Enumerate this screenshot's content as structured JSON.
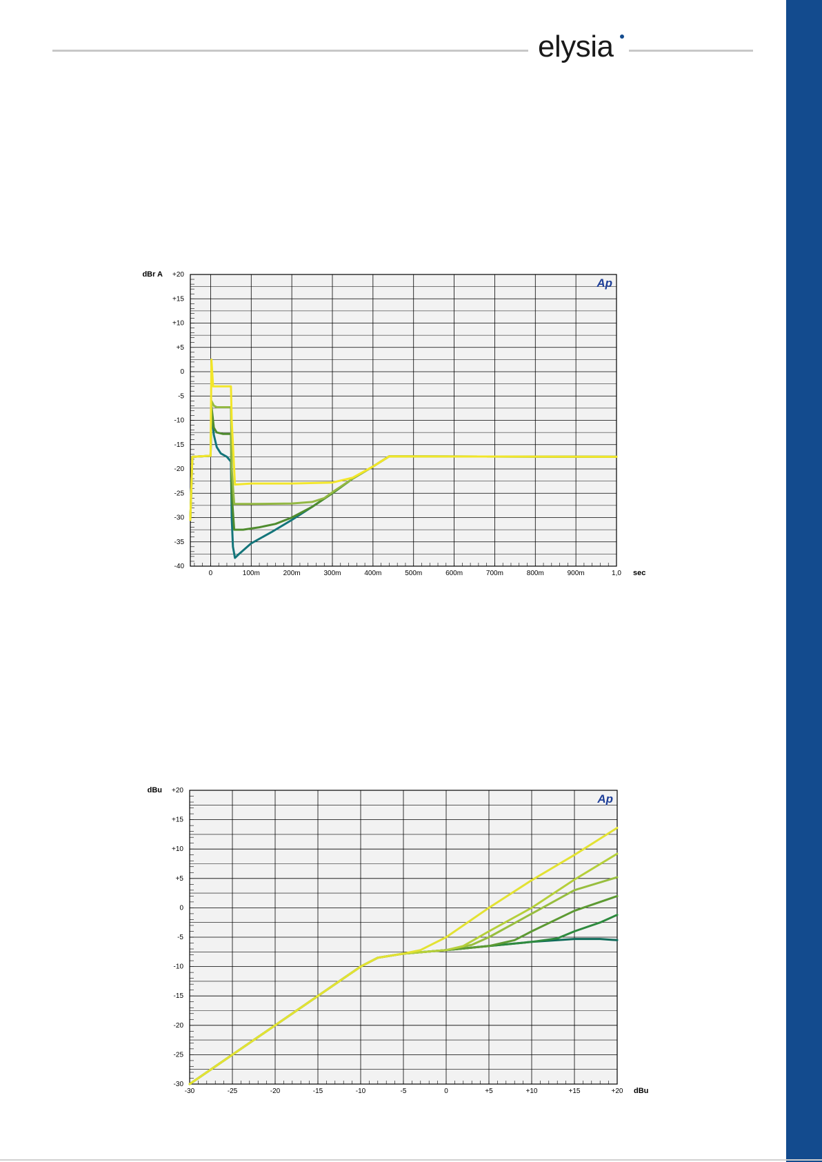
{
  "brand": {
    "name": "elysia"
  },
  "colors": {
    "sidebar": "#134b8e",
    "plot_bg": "#f2f2f2",
    "grid": "#000000"
  },
  "chart_data": [
    {
      "type": "line",
      "title": "",
      "ylabel": "dBr A",
      "xlabel": "sec",
      "xlim": [
        -0.05,
        1.0
      ],
      "ylim": [
        -40,
        20
      ],
      "x_ticks": [
        0,
        0.1,
        0.2,
        0.3,
        0.4,
        0.5,
        0.6,
        0.7,
        0.8,
        0.9,
        1.0
      ],
      "x_tick_labels": [
        "0",
        "100m",
        "200m",
        "300m",
        "400m",
        "500m",
        "600m",
        "700m",
        "800m",
        "900m",
        "1,0"
      ],
      "y_ticks": [
        20,
        15,
        10,
        5,
        0,
        -5,
        -10,
        -15,
        -20,
        -25,
        -30,
        -35,
        -40
      ],
      "y_tick_labels": [
        "+20",
        "+15",
        "+10",
        "+5",
        "0",
        "-5",
        "-10",
        "-15",
        "-20",
        "-25",
        "-30",
        "-35",
        "-40"
      ],
      "watermark": "Ap",
      "grid": true,
      "series": [
        {
          "color": "#14757a",
          "points": [
            [
              -0.05,
              -30.5
            ],
            [
              -0.045,
              -17.5
            ],
            [
              0,
              -17.3
            ],
            [
              0.002,
              -8
            ],
            [
              0.008,
              -13
            ],
            [
              0.015,
              -15.5
            ],
            [
              0.025,
              -16.8
            ],
            [
              0.04,
              -17.5
            ],
            [
              0.05,
              -18.5
            ],
            [
              0.052,
              -30
            ],
            [
              0.055,
              -36
            ],
            [
              0.06,
              -38.3
            ],
            [
              0.07,
              -37.5
            ],
            [
              0.1,
              -35.3
            ],
            [
              0.15,
              -33
            ],
            [
              0.2,
              -30.5
            ],
            [
              0.25,
              -27.8
            ],
            [
              0.3,
              -25
            ],
            [
              0.35,
              -22
            ],
            [
              0.4,
              -19.5
            ],
            [
              0.44,
              -17.4
            ],
            [
              1.0,
              -17.5
            ]
          ]
        },
        {
          "color": "#4f8c2e",
          "points": [
            [
              -0.05,
              -30.5
            ],
            [
              -0.045,
              -17.5
            ],
            [
              0,
              -17.3
            ],
            [
              0.002,
              -7
            ],
            [
              0.008,
              -11.5
            ],
            [
              0.015,
              -12.5
            ],
            [
              0.03,
              -12.8
            ],
            [
              0.05,
              -12.8
            ],
            [
              0.052,
              -25
            ],
            [
              0.058,
              -32.5
            ],
            [
              0.08,
              -32.5
            ],
            [
              0.12,
              -32
            ],
            [
              0.16,
              -31.3
            ],
            [
              0.2,
              -30
            ],
            [
              0.25,
              -27.8
            ],
            [
              0.3,
              -25
            ],
            [
              0.35,
              -22
            ],
            [
              0.4,
              -19.5
            ],
            [
              0.44,
              -17.4
            ],
            [
              1.0,
              -17.5
            ]
          ]
        },
        {
          "color": "#93b843",
          "points": [
            [
              -0.05,
              -30.5
            ],
            [
              -0.045,
              -17.5
            ],
            [
              0,
              -17.3
            ],
            [
              0.002,
              -6
            ],
            [
              0.008,
              -7
            ],
            [
              0.015,
              -7.3
            ],
            [
              0.05,
              -7.3
            ],
            [
              0.052,
              -20
            ],
            [
              0.058,
              -27.2
            ],
            [
              0.1,
              -27.2
            ],
            [
              0.2,
              -27.1
            ],
            [
              0.25,
              -26.8
            ],
            [
              0.28,
              -26
            ],
            [
              0.3,
              -24.8
            ],
            [
              0.35,
              -22
            ],
            [
              0.4,
              -19.5
            ],
            [
              0.44,
              -17.4
            ],
            [
              1.0,
              -17.5
            ]
          ]
        },
        {
          "color": "#f2e629",
          "points": [
            [
              -0.05,
              -30.5
            ],
            [
              -0.045,
              -17.5
            ],
            [
              -0.005,
              -17.3
            ],
            [
              0,
              -17.3
            ],
            [
              0.002,
              2.5
            ],
            [
              0.006,
              -3
            ],
            [
              0.05,
              -3
            ],
            [
              0.052,
              -10
            ],
            [
              0.06,
              -23.2
            ],
            [
              0.1,
              -23
            ],
            [
              0.2,
              -23
            ],
            [
              0.3,
              -22.8
            ],
            [
              0.35,
              -21.8
            ],
            [
              0.4,
              -19.5
            ],
            [
              0.44,
              -17.4
            ],
            [
              1.0,
              -17.5
            ]
          ]
        }
      ]
    },
    {
      "type": "line",
      "title": "",
      "ylabel": "dBu",
      "xlabel": "dBu",
      "xlim": [
        -30,
        20
      ],
      "ylim": [
        -30,
        20
      ],
      "x_ticks": [
        -30,
        -25,
        -20,
        -15,
        -10,
        -5,
        0,
        5,
        10,
        15,
        20
      ],
      "x_tick_labels": [
        "-30",
        "-25",
        "-20",
        "-15",
        "-10",
        "-5",
        "0",
        "+5",
        "+10",
        "+15",
        "+20"
      ],
      "y_ticks": [
        20,
        15,
        10,
        5,
        0,
        -5,
        -10,
        -15,
        -20,
        -25,
        -30
      ],
      "y_tick_labels": [
        "+20",
        "+15",
        "+10",
        "+5",
        "0",
        "-5",
        "-10",
        "-15",
        "-20",
        "-25",
        "-30"
      ],
      "watermark": "Ap",
      "grid": true,
      "series": [
        {
          "color": "#0f6b5a",
          "points": [
            [
              -30,
              -30
            ],
            [
              -10,
              -10
            ],
            [
              -8,
              -8.5
            ],
            [
              -5,
              -7.8
            ],
            [
              0,
              -7.2
            ],
            [
              5,
              -6.5
            ],
            [
              10,
              -5.8
            ],
            [
              15,
              -5.3
            ],
            [
              18,
              -5.3
            ],
            [
              20,
              -5.5
            ]
          ]
        },
        {
          "color": "#2e8a3e",
          "points": [
            [
              -30,
              -30
            ],
            [
              -10,
              -10
            ],
            [
              -8,
              -8.5
            ],
            [
              -5,
              -7.8
            ],
            [
              0,
              -7.2
            ],
            [
              5,
              -6.5
            ],
            [
              10,
              -5.8
            ],
            [
              13,
              -5.2
            ],
            [
              15,
              -4
            ],
            [
              18,
              -2.5
            ],
            [
              20,
              -1.2
            ]
          ]
        },
        {
          "color": "#5d9a33",
          "points": [
            [
              -30,
              -30
            ],
            [
              -10,
              -10
            ],
            [
              -8,
              -8.5
            ],
            [
              -5,
              -7.8
            ],
            [
              0,
              -7.2
            ],
            [
              5,
              -6.5
            ],
            [
              8,
              -5.5
            ],
            [
              10,
              -4
            ],
            [
              15,
              -0.5
            ],
            [
              20,
              2
            ]
          ]
        },
        {
          "color": "#98be3f",
          "points": [
            [
              -30,
              -30
            ],
            [
              -10,
              -10
            ],
            [
              -8,
              -8.5
            ],
            [
              -5,
              -7.8
            ],
            [
              0,
              -7.2
            ],
            [
              3,
              -6.3
            ],
            [
              5,
              -5
            ],
            [
              10,
              -1
            ],
            [
              15,
              3
            ],
            [
              20,
              5.2
            ]
          ]
        },
        {
          "color": "#b5cf3a",
          "points": [
            [
              -30,
              -30
            ],
            [
              -10,
              -10
            ],
            [
              -8,
              -8.5
            ],
            [
              -5,
              -7.8
            ],
            [
              0,
              -7.2
            ],
            [
              2,
              -6.5
            ],
            [
              5,
              -4
            ],
            [
              10,
              0
            ],
            [
              15,
              4.8
            ],
            [
              20,
              9.2
            ]
          ]
        },
        {
          "color": "#e3e233",
          "points": [
            [
              -30,
              -30
            ],
            [
              -10,
              -10
            ],
            [
              -8,
              -8.5
            ],
            [
              -5,
              -7.8
            ],
            [
              -3,
              -7.2
            ],
            [
              0,
              -5
            ],
            [
              5,
              0
            ],
            [
              10,
              4.7
            ],
            [
              15,
              9
            ],
            [
              20,
              13.6
            ]
          ]
        }
      ]
    }
  ]
}
